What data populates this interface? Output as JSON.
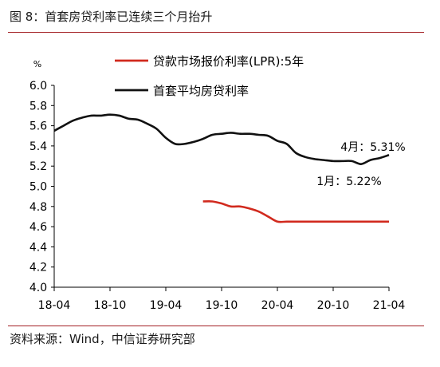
{
  "figure": {
    "title": "图 8：首套房贷利率已连续三个月抬升",
    "source": "资料来源：Wind，中信证券研究部"
  },
  "chart_data": {
    "type": "line",
    "ylabel": "%",
    "ylim": [
      4.0,
      6.0
    ],
    "yticks": [
      "4.0",
      "4.2",
      "4.4",
      "4.6",
      "4.8",
      "5.0",
      "5.2",
      "5.4",
      "5.6",
      "5.8",
      "6.0"
    ],
    "xticks": [
      "18-04",
      "18-10",
      "19-04",
      "19-10",
      "20-04",
      "20-10",
      "21-04"
    ],
    "legend": {
      "placement": "top-center"
    },
    "series": [
      {
        "name": "贷款市场报价利率(LPR):5年",
        "color": "#d12a1e",
        "points": [
          [
            "2019-08",
            4.85
          ],
          [
            "2019-09",
            4.85
          ],
          [
            "2019-10",
            4.83
          ],
          [
            "2019-11",
            4.8
          ],
          [
            "2019-12",
            4.8
          ],
          [
            "2020-01",
            4.78
          ],
          [
            "2020-02",
            4.75
          ],
          [
            "2020-03",
            4.7
          ],
          [
            "2020-04",
            4.65
          ],
          [
            "2020-05",
            4.65
          ],
          [
            "2020-06",
            4.65
          ],
          [
            "2020-07",
            4.65
          ],
          [
            "2020-08",
            4.65
          ],
          [
            "2020-09",
            4.65
          ],
          [
            "2020-10",
            4.65
          ],
          [
            "2020-11",
            4.65
          ],
          [
            "2020-12",
            4.65
          ],
          [
            "2021-01",
            4.65
          ],
          [
            "2021-02",
            4.65
          ],
          [
            "2021-03",
            4.65
          ],
          [
            "2021-04",
            4.65
          ]
        ]
      },
      {
        "name": "首套平均房贷利率",
        "color": "#111111",
        "points": [
          [
            "2018-04",
            5.55
          ],
          [
            "2018-05",
            5.6
          ],
          [
            "2018-06",
            5.65
          ],
          [
            "2018-07",
            5.68
          ],
          [
            "2018-08",
            5.7
          ],
          [
            "2018-09",
            5.7
          ],
          [
            "2018-10",
            5.71
          ],
          [
            "2018-11",
            5.7
          ],
          [
            "2018-12",
            5.67
          ],
          [
            "2019-01",
            5.66
          ],
          [
            "2019-02",
            5.62
          ],
          [
            "2019-03",
            5.57
          ],
          [
            "2019-04",
            5.48
          ],
          [
            "2019-05",
            5.42
          ],
          [
            "2019-06",
            5.42
          ],
          [
            "2019-07",
            5.44
          ],
          [
            "2019-08",
            5.47
          ],
          [
            "2019-09",
            5.51
          ],
          [
            "2019-10",
            5.52
          ],
          [
            "2019-11",
            5.53
          ],
          [
            "2019-12",
            5.52
          ],
          [
            "2020-01",
            5.52
          ],
          [
            "2020-02",
            5.51
          ],
          [
            "2020-03",
            5.5
          ],
          [
            "2020-04",
            5.45
          ],
          [
            "2020-05",
            5.42
          ],
          [
            "2020-06",
            5.33
          ],
          [
            "2020-07",
            5.29
          ],
          [
            "2020-08",
            5.27
          ],
          [
            "2020-09",
            5.26
          ],
          [
            "2020-10",
            5.25
          ],
          [
            "2020-11",
            5.25
          ],
          [
            "2020-12",
            5.25
          ],
          [
            "2021-01",
            5.22
          ],
          [
            "2021-02",
            5.26
          ],
          [
            "2021-03",
            5.28
          ],
          [
            "2021-04",
            5.31
          ]
        ]
      }
    ],
    "annotations": [
      {
        "text": "4月：5.31%",
        "x": "2021-04",
        "y": 5.31
      },
      {
        "text": "1月：5.22%",
        "x": "2021-01",
        "y": 5.22
      }
    ]
  }
}
